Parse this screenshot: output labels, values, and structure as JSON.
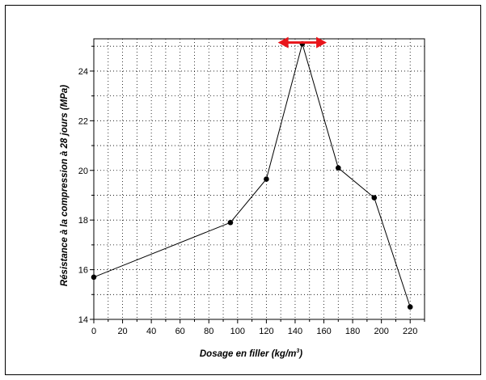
{
  "chart_data": {
    "type": "line",
    "xlabel_main": "Dosage en filler (kg/m",
    "xlabel_sup": "3",
    "xlabel_end": ")",
    "ylabel": "Résistance à la compression à 28 jours (MPa)",
    "xlim": [
      0,
      230
    ],
    "ylim": [
      14,
      25.3
    ],
    "x_ticks": [
      0,
      20,
      40,
      60,
      80,
      100,
      120,
      140,
      160,
      180,
      200,
      220
    ],
    "y_ticks": [
      14,
      16,
      18,
      20,
      22,
      24
    ],
    "grid": true,
    "series": [
      {
        "x": [
          0,
          95,
          120,
          145,
          170,
          195,
          220
        ],
        "y": [
          15.7,
          17.9,
          19.65,
          25.1,
          20.1,
          18.9,
          14.5
        ],
        "line_color": "#000000",
        "marker_color": "#000000"
      }
    ],
    "annotation": {
      "type": "double-arrow",
      "x_from": 128,
      "x_to": 162,
      "y": 25.15,
      "color": "#e8141a"
    }
  }
}
